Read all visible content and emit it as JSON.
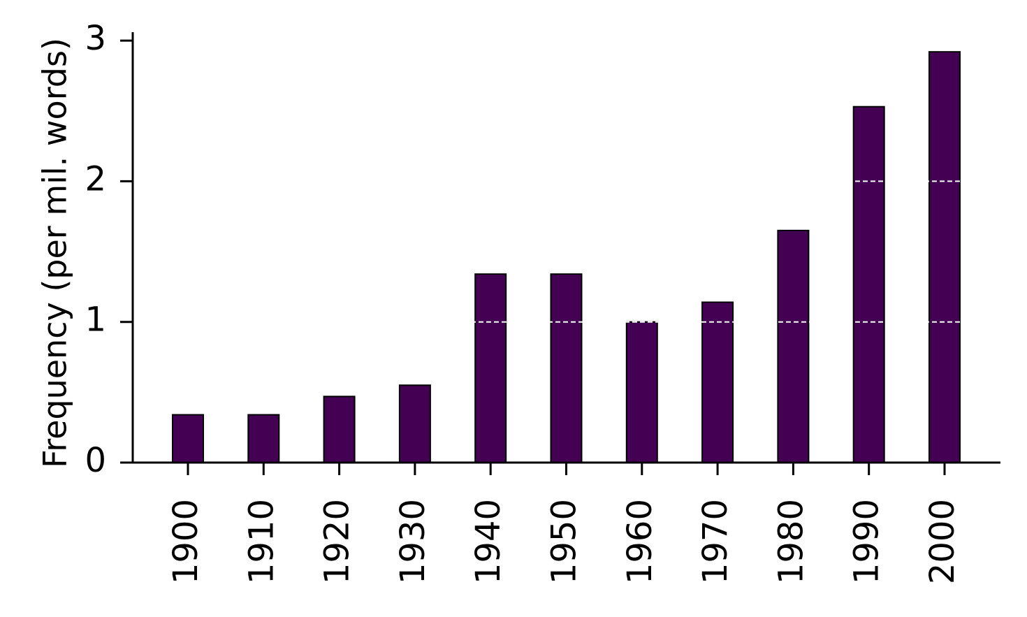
{
  "chart_data": {
    "type": "bar",
    "y_label": "Frequency (per mil. words)",
    "categories": [
      "1900",
      "1910",
      "1920",
      "1930",
      "1940",
      "1950",
      "1960",
      "1970",
      "1980",
      "1990",
      "2000"
    ],
    "values": [
      0.34,
      0.34,
      0.47,
      0.55,
      1.34,
      1.34,
      1.0,
      1.14,
      1.65,
      2.53,
      2.92
    ],
    "color": "#440154",
    "ylim": [
      0,
      3.06
    ],
    "yticks": [
      0,
      1,
      2,
      3
    ],
    "grid": true,
    "grid_color": "#ffffff"
  }
}
